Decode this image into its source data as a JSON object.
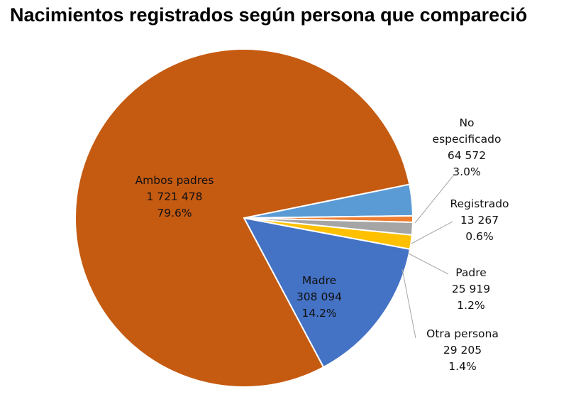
{
  "chart_data": {
    "type": "pie",
    "title": "Nacimientos registrados según persona que compareció",
    "slices": [
      {
        "label": "No especificado",
        "label_lines": [
          "No",
          "especificado"
        ],
        "value": 64572,
        "value_text": "64 572",
        "percent_text": "3.0%",
        "color": "#5B9BD5"
      },
      {
        "label": "Registrado",
        "label_lines": [
          "Registrado"
        ],
        "value": 13267,
        "value_text": "13 267",
        "percent_text": "0.6%",
        "color": "#ED7D31"
      },
      {
        "label": "Padre",
        "label_lines": [
          "Padre"
        ],
        "value": 25919,
        "value_text": "25 919",
        "percent_text": "1.2%",
        "color": "#A5A5A5"
      },
      {
        "label": "Otra persona",
        "label_lines": [
          "Otra persona"
        ],
        "value": 29205,
        "value_text": "29 205",
        "percent_text": "1.4%",
        "color": "#FFC000"
      },
      {
        "label": "Madre",
        "label_lines": [
          "Madre"
        ],
        "value": 308094,
        "value_text": "308 094",
        "percent_text": "14.2%",
        "color": "#4472C4"
      },
      {
        "label": "Ambos padres",
        "label_lines": [
          "Ambos padres"
        ],
        "value": 1721478,
        "value_text": "1 721 478",
        "percent_text": "79.6%",
        "color": "#C55A11"
      }
    ],
    "legend": "none",
    "data_labels": "category, value, percent"
  }
}
